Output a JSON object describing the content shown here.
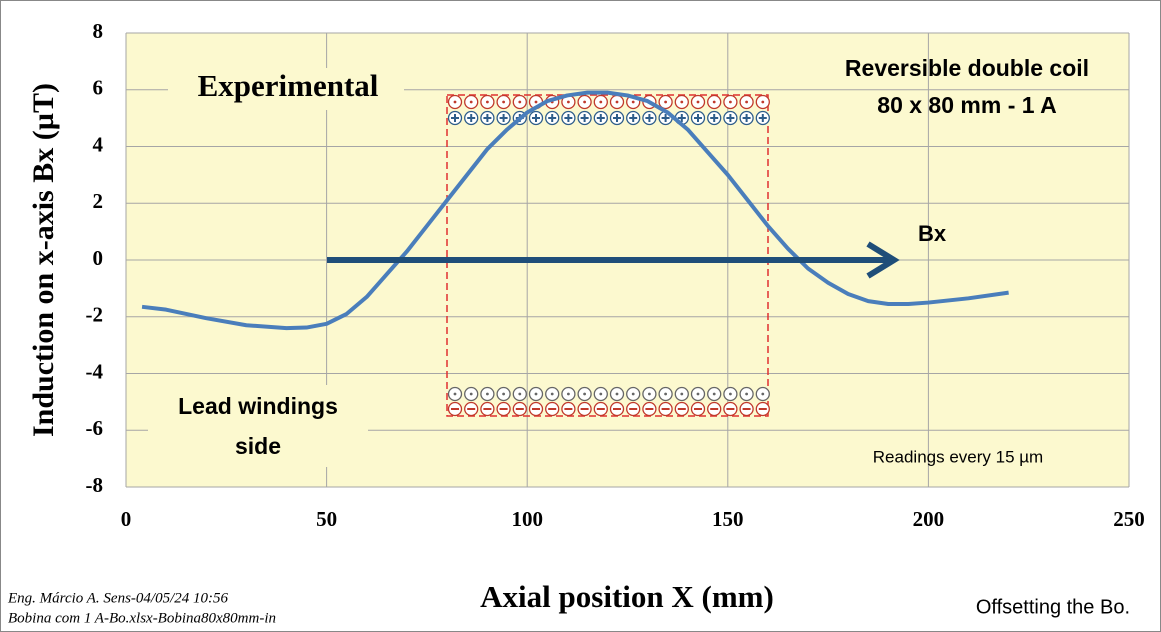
{
  "chart_data": {
    "type": "line",
    "title": "Experimental",
    "x_label": "Axial position X (mm)",
    "y_label": "Induction on x-axis Bx (µT)",
    "annotations": [
      "Reversible double coil",
      "80 x 80 mm - 1 A",
      "Bx",
      "Lead windings",
      "side",
      "Readings every 15 µm"
    ],
    "footer": [
      "Eng. Márcio A. Sens-04/05/24 10:56",
      "Bobina com 1 A-Bo.xlsx-Bobina80x80mm-in",
      "Offsetting the Bo."
    ],
    "x": [
      4,
      10,
      20,
      30,
      40,
      45,
      50,
      55,
      60,
      65,
      70,
      75,
      80,
      85,
      90,
      95,
      100,
      105,
      110,
      115,
      120,
      125,
      130,
      135,
      140,
      145,
      150,
      155,
      160,
      165,
      170,
      175,
      180,
      185,
      190,
      195,
      200,
      210,
      220
    ],
    "series": [
      {
        "color": "#4a7ebb",
        "values": [
          -1.65,
          -1.75,
          -2.05,
          -2.3,
          -2.4,
          -2.38,
          -2.25,
          -1.9,
          -1.3,
          -0.5,
          0.3,
          1.2,
          2.1,
          3.0,
          3.9,
          4.6,
          5.2,
          5.6,
          5.8,
          5.9,
          5.9,
          5.8,
          5.6,
          5.2,
          4.6,
          3.8,
          3.0,
          2.1,
          1.2,
          0.4,
          -0.3,
          -0.8,
          -1.2,
          -1.45,
          -1.55,
          -1.55,
          -1.5,
          -1.35,
          -1.15
        ]
      }
    ],
    "xlim": [
      0,
      250
    ],
    "xticks": [
      0,
      50,
      100,
      150,
      200,
      250
    ],
    "ylim": [
      -8,
      8
    ],
    "yticks": [
      -8,
      -6,
      -4,
      -2,
      0,
      2,
      4,
      6,
      8
    ],
    "grid": true
  }
}
